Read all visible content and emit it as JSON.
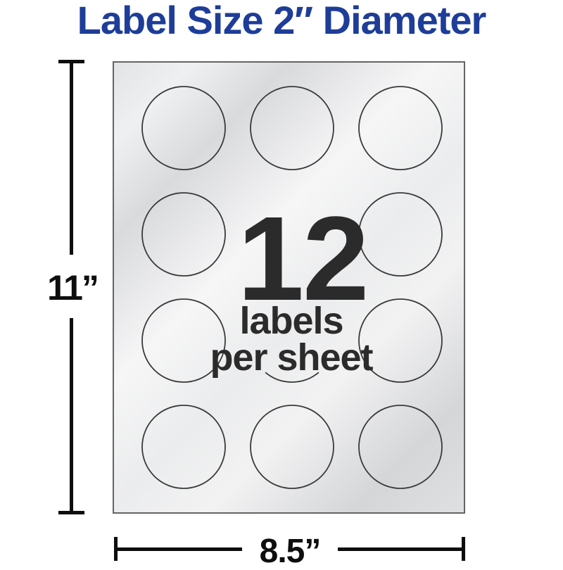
{
  "title": "Label Size 2″ Diameter",
  "sheet": {
    "count": "12",
    "caption_line1": "labels",
    "caption_line2": "per sheet",
    "grid": {
      "rows": 4,
      "cols": 3,
      "shape": "circle"
    },
    "hidden_circle": {
      "row": 2,
      "col": 2
    },
    "partial_circle": {
      "row": 3,
      "col": 2,
      "visible": "bottom-arc"
    }
  },
  "dimensions": {
    "height": "11”",
    "width": "8.5”"
  },
  "colors": {
    "title_blue": "#1e3d99",
    "sheet_text_dark": "#2b2b2b",
    "dimension_black": "#0e0e0e",
    "circle_stroke": "#3a3a3a",
    "sheet_border": "#646464",
    "silver_light": "#f6f6f7",
    "silver_mid": "#e2e3e5",
    "silver_dark": "#d5d6d8",
    "page_background": "#ffffff"
  }
}
